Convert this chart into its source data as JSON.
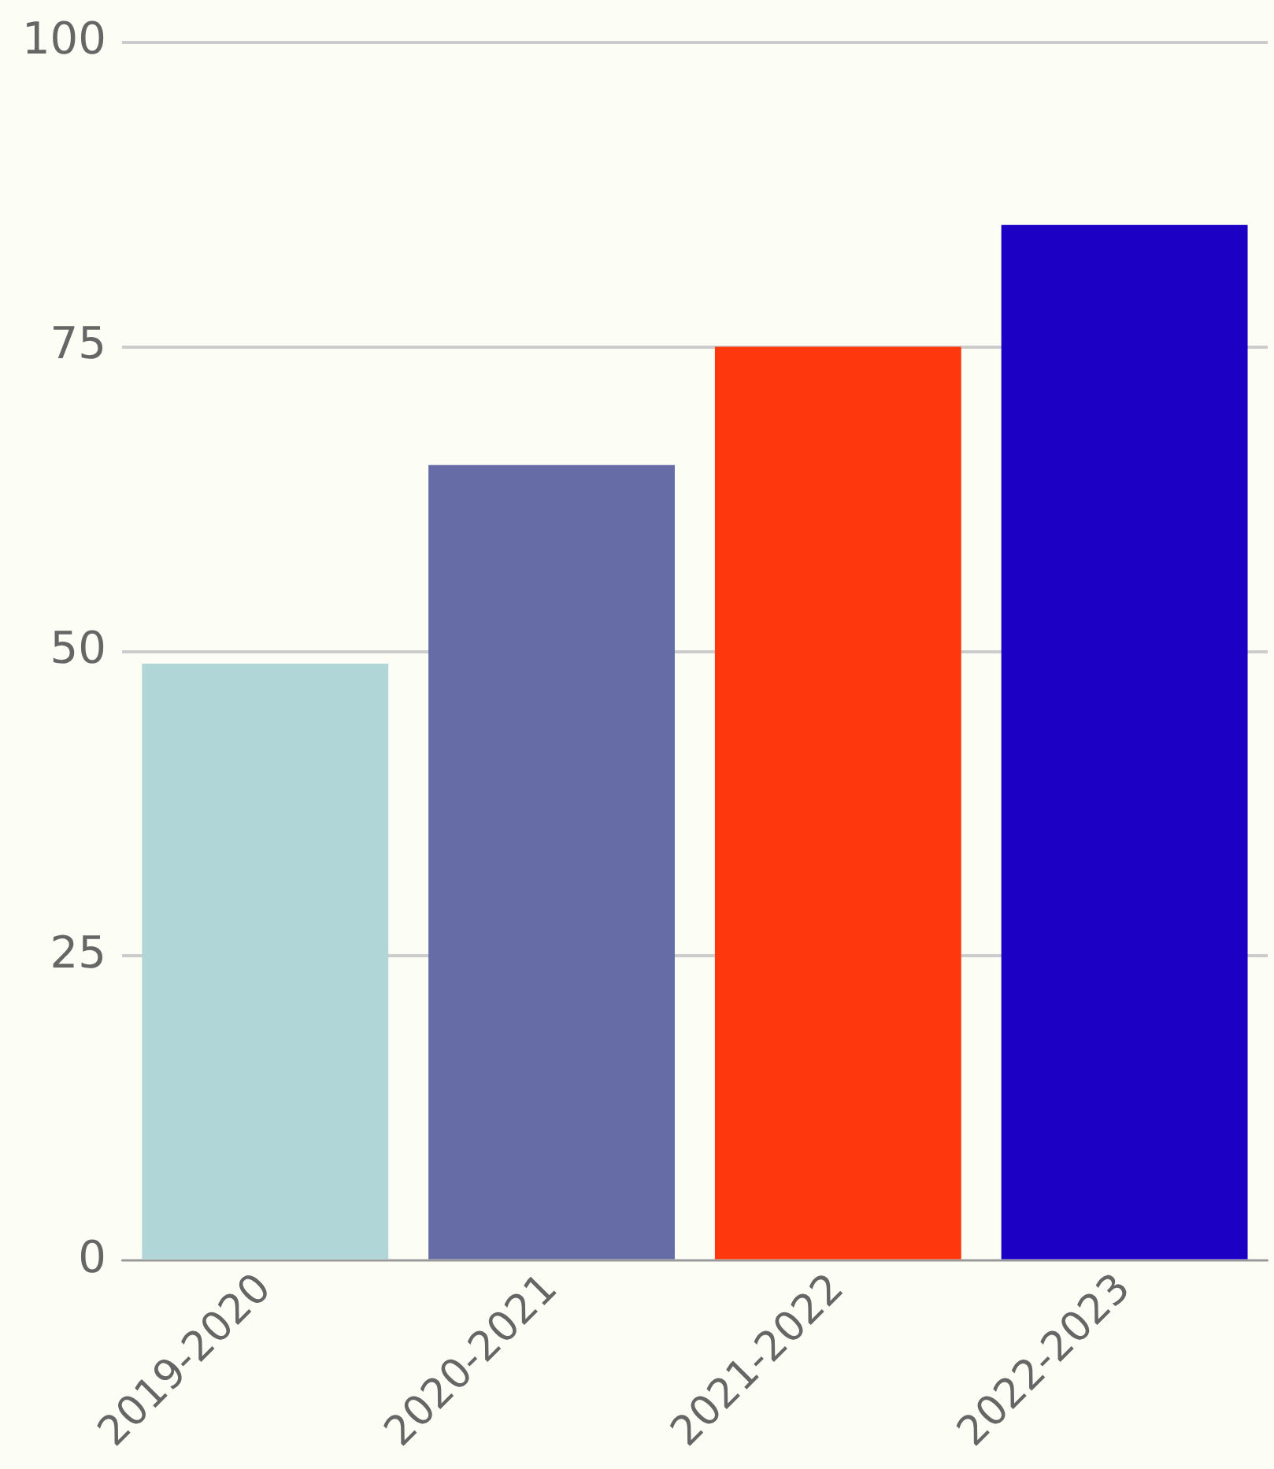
{
  "chart_data": {
    "type": "bar",
    "categories": [
      "2019-2020",
      "2020-2021",
      "2021-2022",
      "2022-2023"
    ],
    "values": [
      49,
      65.3,
      75,
      85
    ],
    "colors": [
      "#b0d6d8",
      "#666ca6",
      "#ff370d",
      "#1c00c4"
    ],
    "ylim": [
      0,
      100
    ],
    "yticks": [
      0,
      25,
      50,
      75,
      100
    ],
    "grid": "y",
    "legend": false
  }
}
